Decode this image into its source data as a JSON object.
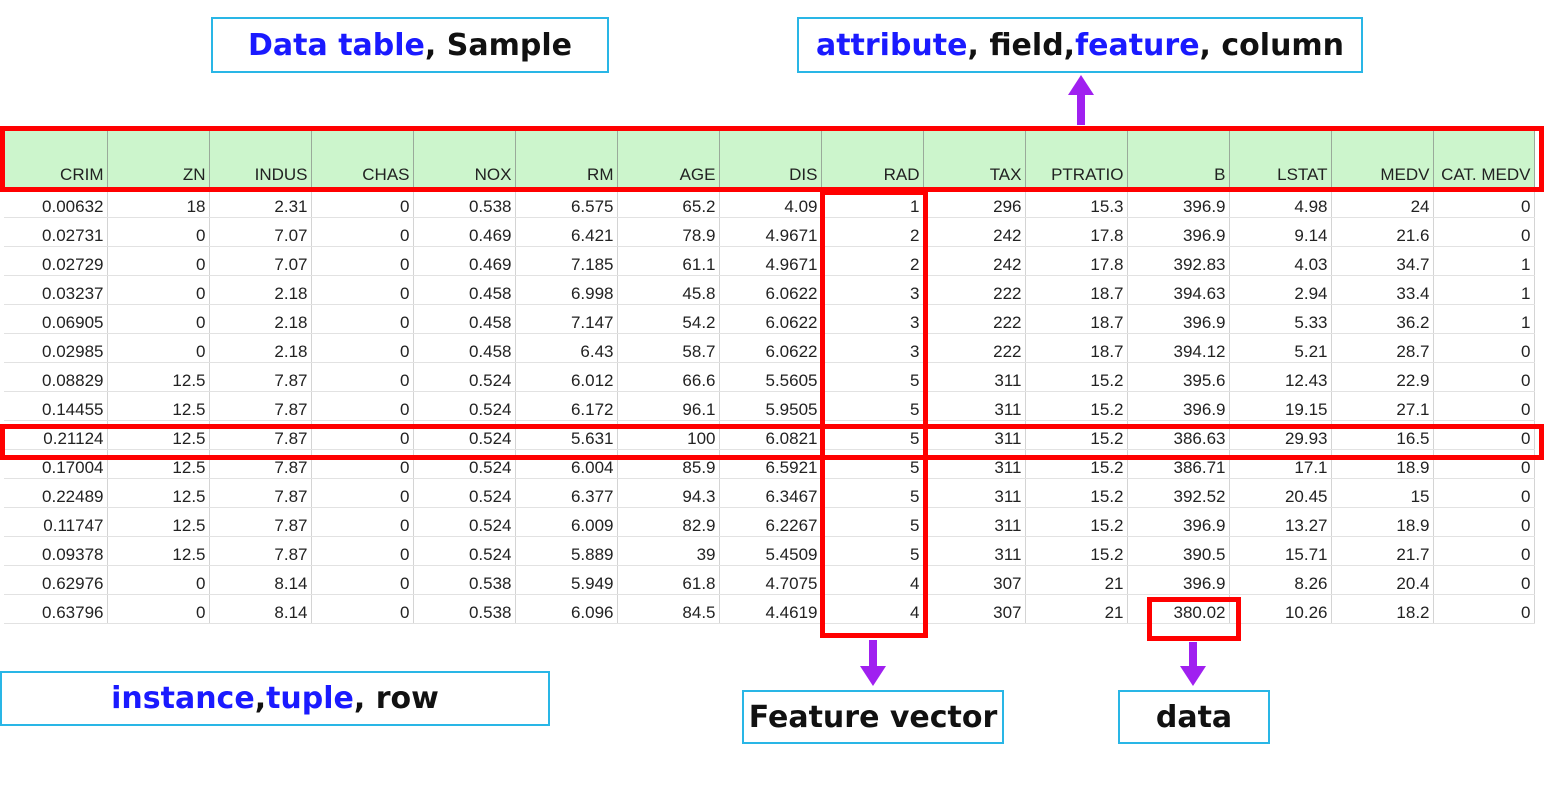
{
  "labels": {
    "data_table": {
      "part1": "Data table",
      "part2": ", Sample"
    },
    "attribute": {
      "p1": "attribute",
      "p2": ", field, ",
      "p3": "feature",
      "p4": ", column"
    },
    "instance": {
      "p1": "instance",
      "p2": ", ",
      "p3": "tuple",
      "p4": ", row"
    },
    "feature_vector": "Feature vector",
    "data": "data"
  },
  "table": {
    "columns": [
      "CRIM",
      "ZN",
      "INDUS",
      "CHAS",
      "NOX",
      "RM",
      "AGE",
      "DIS",
      "RAD",
      "TAX",
      "PTRATIO",
      "B",
      "LSTAT",
      "MEDV",
      "CAT. MEDV"
    ],
    "rows": [
      [
        "0.00632",
        "18",
        "2.31",
        "0",
        "0.538",
        "6.575",
        "65.2",
        "4.09",
        "1",
        "296",
        "15.3",
        "396.9",
        "4.98",
        "24",
        "0"
      ],
      [
        "0.02731",
        "0",
        "7.07",
        "0",
        "0.469",
        "6.421",
        "78.9",
        "4.9671",
        "2",
        "242",
        "17.8",
        "396.9",
        "9.14",
        "21.6",
        "0"
      ],
      [
        "0.02729",
        "0",
        "7.07",
        "0",
        "0.469",
        "7.185",
        "61.1",
        "4.9671",
        "2",
        "242",
        "17.8",
        "392.83",
        "4.03",
        "34.7",
        "1"
      ],
      [
        "0.03237",
        "0",
        "2.18",
        "0",
        "0.458",
        "6.998",
        "45.8",
        "6.0622",
        "3",
        "222",
        "18.7",
        "394.63",
        "2.94",
        "33.4",
        "1"
      ],
      [
        "0.06905",
        "0",
        "2.18",
        "0",
        "0.458",
        "7.147",
        "54.2",
        "6.0622",
        "3",
        "222",
        "18.7",
        "396.9",
        "5.33",
        "36.2",
        "1"
      ],
      [
        "0.02985",
        "0",
        "2.18",
        "0",
        "0.458",
        "6.43",
        "58.7",
        "6.0622",
        "3",
        "222",
        "18.7",
        "394.12",
        "5.21",
        "28.7",
        "0"
      ],
      [
        "0.08829",
        "12.5",
        "7.87",
        "0",
        "0.524",
        "6.012",
        "66.6",
        "5.5605",
        "5",
        "311",
        "15.2",
        "395.6",
        "12.43",
        "22.9",
        "0"
      ],
      [
        "0.14455",
        "12.5",
        "7.87",
        "0",
        "0.524",
        "6.172",
        "96.1",
        "5.9505",
        "5",
        "311",
        "15.2",
        "396.9",
        "19.15",
        "27.1",
        "0"
      ],
      [
        "0.21124",
        "12.5",
        "7.87",
        "0",
        "0.524",
        "5.631",
        "100",
        "6.0821",
        "5",
        "311",
        "15.2",
        "386.63",
        "29.93",
        "16.5",
        "0"
      ],
      [
        "0.17004",
        "12.5",
        "7.87",
        "0",
        "0.524",
        "6.004",
        "85.9",
        "6.5921",
        "5",
        "311",
        "15.2",
        "386.71",
        "17.1",
        "18.9",
        "0"
      ],
      [
        "0.22489",
        "12.5",
        "7.87",
        "0",
        "0.524",
        "6.377",
        "94.3",
        "6.3467",
        "5",
        "311",
        "15.2",
        "392.52",
        "20.45",
        "15",
        "0"
      ],
      [
        "0.11747",
        "12.5",
        "7.87",
        "0",
        "0.524",
        "6.009",
        "82.9",
        "6.2267",
        "5",
        "311",
        "15.2",
        "396.9",
        "13.27",
        "18.9",
        "0"
      ],
      [
        "0.09378",
        "12.5",
        "7.87",
        "0",
        "0.524",
        "5.889",
        "39",
        "5.4509",
        "5",
        "311",
        "15.2",
        "390.5",
        "15.71",
        "21.7",
        "0"
      ],
      [
        "0.62976",
        "0",
        "8.14",
        "0",
        "0.538",
        "5.949",
        "61.8",
        "4.7075",
        "4",
        "307",
        "21",
        "396.9",
        "8.26",
        "20.4",
        "0"
      ],
      [
        "0.63796",
        "0",
        "8.14",
        "0",
        "0.538",
        "6.096",
        "84.5",
        "4.4619",
        "4",
        "307",
        "21",
        "380.02",
        "10.26",
        "18.2",
        "0"
      ]
    ]
  },
  "colors": {
    "highlight": "#ff0000",
    "arrow": "#a020f0",
    "label_border": "#29b6e6",
    "emphasis_text": "#1a1aff",
    "header_bg": "#ccf5cc"
  }
}
